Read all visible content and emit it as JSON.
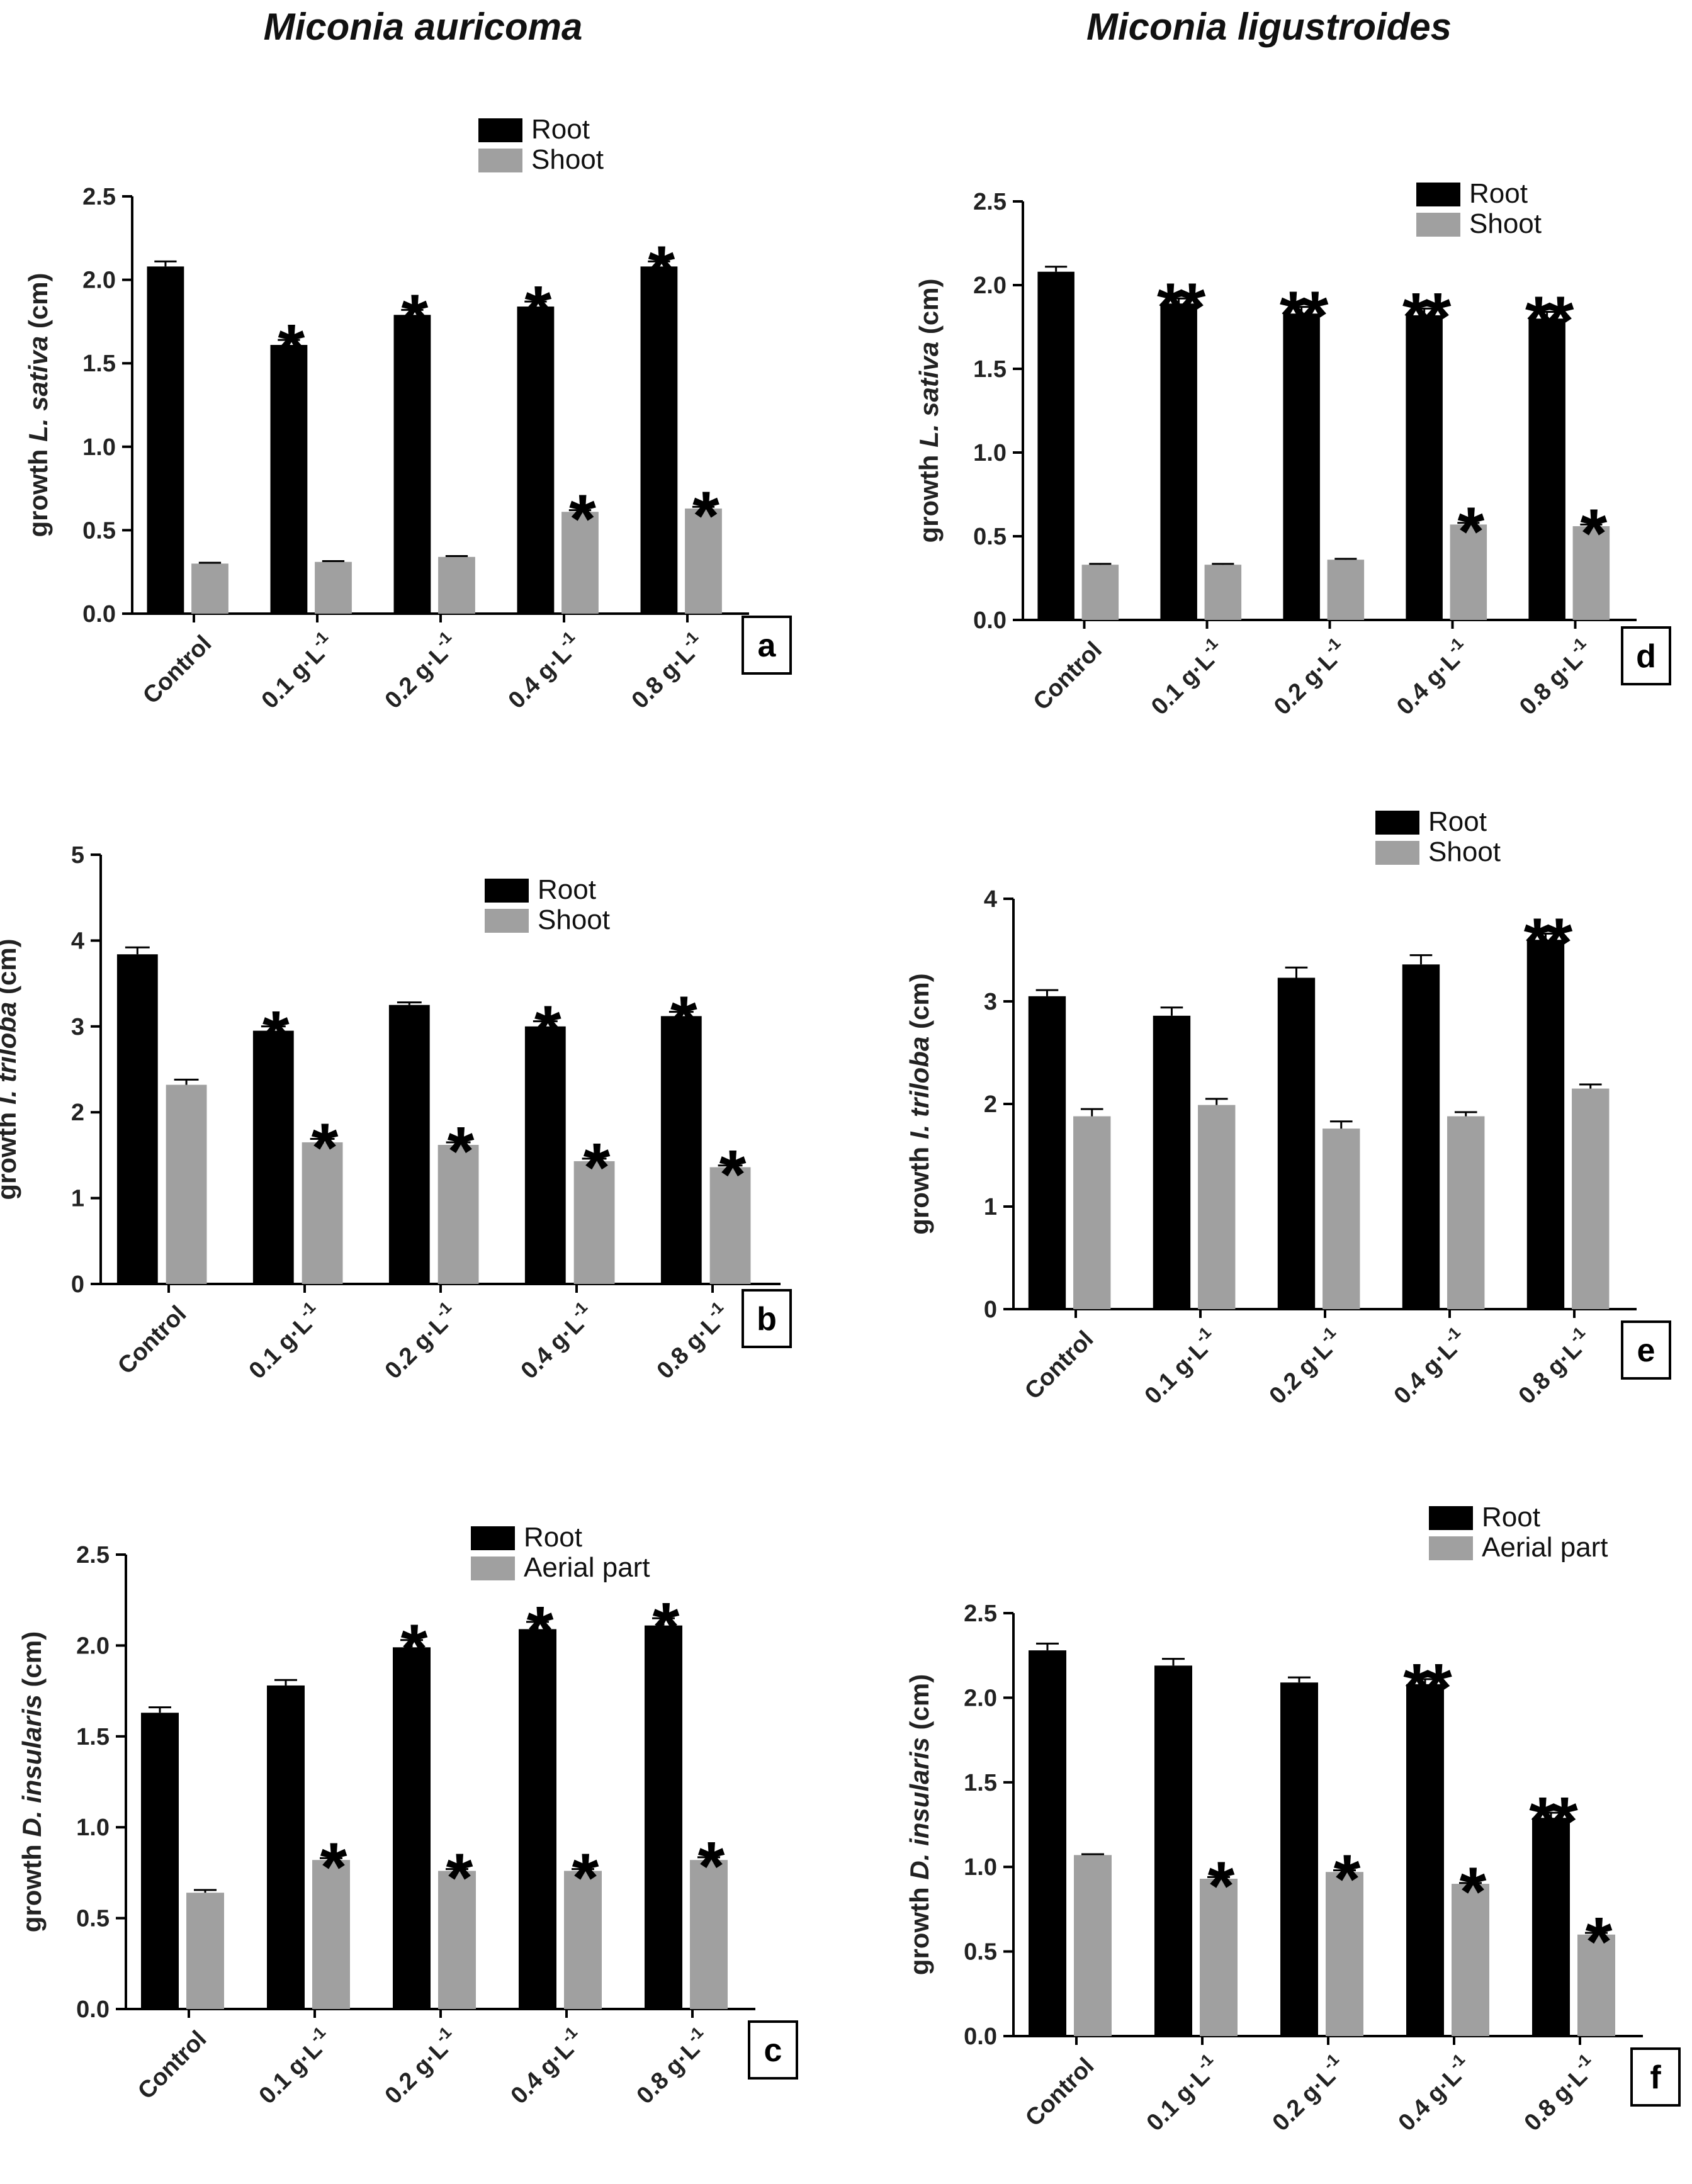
{
  "column_titles": {
    "left": "Miconia auricoma",
    "right": "Miconia ligustroides"
  },
  "colors": {
    "root": "#000000",
    "shoot": "#a0a0a0",
    "axis": "#000000"
  },
  "chart_data": [
    {
      "panel": "a",
      "type": "bar",
      "column": "Miconia auricoma",
      "categories": [
        "Control",
        "0.1 g·L-1",
        "0.2 g·L-1",
        "0.4 g·L-1",
        "0.8 g·L-1"
      ],
      "ylabel_prefix": "growth ",
      "ylabel_species": "L. sativa",
      "ylabel_suffix": " (cm)",
      "ylim": [
        0,
        2.5
      ],
      "yticks": [
        "0.0",
        "0.5",
        "1.0",
        "1.5",
        "2.0",
        "2.5"
      ],
      "series": [
        {
          "name": "Root",
          "values": [
            2.08,
            1.61,
            1.79,
            1.84,
            2.08
          ],
          "errors": [
            0.03,
            0.03,
            0.03,
            0.03,
            0.03
          ],
          "marks": [
            "",
            "*",
            "*",
            "*",
            "*"
          ]
        },
        {
          "name": "Shoot",
          "values": [
            0.3,
            0.31,
            0.34,
            0.61,
            0.63
          ],
          "errors": [
            0.005,
            0.005,
            0.005,
            0.01,
            0.01
          ],
          "marks": [
            "",
            "",
            "",
            "*",
            "*"
          ]
        }
      ],
      "legend": [
        "Root",
        "Shoot"
      ],
      "legend_position": "top-center"
    },
    {
      "panel": "b",
      "type": "bar",
      "column": "Miconia auricoma",
      "categories": [
        "Control",
        "0.1 g·L-1",
        "0.2 g·L-1",
        "0.4 g·L-1",
        "0.8 g·L-1"
      ],
      "ylabel_prefix": "growth ",
      "ylabel_species": "I. triloba",
      "ylabel_suffix": " (cm)",
      "ylim": [
        0,
        5
      ],
      "yticks": [
        "0",
        "1",
        "2",
        "3",
        "4",
        "5"
      ],
      "series": [
        {
          "name": "Root",
          "values": [
            3.84,
            2.95,
            3.25,
            3.0,
            3.12
          ],
          "errors": [
            0.08,
            0.05,
            0.03,
            0.06,
            0.05
          ],
          "marks": [
            "",
            "*",
            "",
            "*",
            "*"
          ]
        },
        {
          "name": "Shoot",
          "values": [
            2.32,
            1.65,
            1.62,
            1.43,
            1.36
          ],
          "errors": [
            0.06,
            0.04,
            0.03,
            0.03,
            0.02
          ],
          "marks": [
            "",
            "*",
            "*",
            "*",
            "*"
          ]
        }
      ],
      "legend": [
        "Root",
        "Shoot"
      ],
      "legend_position": "top-right"
    },
    {
      "panel": "c",
      "type": "bar",
      "column": "Miconia auricoma",
      "categories": [
        "Control",
        "0.1 g·L-1",
        "0.2 g·L-1",
        "0.4 g·L-1",
        "0.8 g·L-1"
      ],
      "ylabel_prefix": "growth ",
      "ylabel_species": "D. insularis",
      "ylabel_suffix": " (cm)",
      "ylim": [
        0,
        2.5
      ],
      "yticks": [
        "0.0",
        "0.5",
        "1.0",
        "1.5",
        "2.0",
        "2.5"
      ],
      "series": [
        {
          "name": "Root",
          "values": [
            1.63,
            1.78,
            1.99,
            2.09,
            2.11
          ],
          "errors": [
            0.03,
            0.03,
            0.04,
            0.04,
            0.04
          ],
          "marks": [
            "",
            "",
            "*",
            "*",
            "*"
          ]
        },
        {
          "name": "Aerial part",
          "values": [
            0.64,
            0.82,
            0.76,
            0.76,
            0.82
          ],
          "errors": [
            0.015,
            0.01,
            0.01,
            0.01,
            0.015
          ],
          "marks": [
            "",
            "*",
            "*",
            "*",
            "*"
          ]
        }
      ],
      "legend": [
        "Root",
        "Aerial part"
      ],
      "legend_position": "top-center"
    },
    {
      "panel": "d",
      "type": "bar",
      "column": "Miconia ligustroides",
      "categories": [
        "Control",
        "0.1 g·L-1",
        "0.2 g·L-1",
        "0.4 g·L-1",
        "0.8 g·L-1"
      ],
      "ylabel_prefix": "growth ",
      "ylabel_species": "L. sativa",
      "ylabel_suffix": " (cm)",
      "ylim": [
        0,
        2.5
      ],
      "yticks": [
        "0.0",
        "0.5",
        "1.0",
        "1.5",
        "2.0",
        "2.5"
      ],
      "series": [
        {
          "name": "Root",
          "values": [
            2.08,
            1.89,
            1.83,
            1.82,
            1.8
          ],
          "errors": [
            0.03,
            0.03,
            0.04,
            0.04,
            0.04
          ],
          "marks": [
            "",
            "**",
            "**",
            "**",
            "**"
          ]
        },
        {
          "name": "Shoot",
          "values": [
            0.33,
            0.33,
            0.36,
            0.57,
            0.56
          ],
          "errors": [
            0.005,
            0.005,
            0.005,
            0.01,
            0.01
          ],
          "marks": [
            "",
            "",
            "",
            "*",
            "*"
          ]
        }
      ],
      "legend": [
        "Root",
        "Shoot"
      ],
      "legend_position": "top-right"
    },
    {
      "panel": "e",
      "type": "bar",
      "column": "Miconia ligustroides",
      "categories": [
        "Control",
        "0.1 g·L-1",
        "0.2 g·L-1",
        "0.4 g·L-1",
        "0.8 g·L-1"
      ],
      "ylabel_prefix": "growth ",
      "ylabel_species": "I. triloba",
      "ylabel_suffix": " (cm)",
      "ylim": [
        0,
        4
      ],
      "yticks": [
        "0",
        "1",
        "2",
        "3",
        "4"
      ],
      "series": [
        {
          "name": "Root",
          "values": [
            3.05,
            2.86,
            3.23,
            3.36,
            3.6
          ],
          "errors": [
            0.06,
            0.08,
            0.1,
            0.09,
            0.06
          ],
          "marks": [
            "",
            "",
            "",
            "",
            "**"
          ]
        },
        {
          "name": "Shoot",
          "values": [
            1.88,
            1.99,
            1.76,
            1.88,
            2.15
          ],
          "errors": [
            0.07,
            0.06,
            0.07,
            0.04,
            0.04
          ],
          "marks": [
            "",
            "",
            "",
            "",
            ""
          ]
        }
      ],
      "legend": [
        "Root",
        "Shoot"
      ],
      "legend_position": "top-center"
    },
    {
      "panel": "f",
      "type": "bar",
      "column": "Miconia ligustroides",
      "categories": [
        "Control",
        "0.1 g·L-1",
        "0.2 g·L-1",
        "0.4 g·L-1",
        "0.8 g·L-1"
      ],
      "ylabel_prefix": "growth ",
      "ylabel_species": "D. insularis",
      "ylabel_suffix": " (cm)",
      "ylim": [
        0,
        2.5
      ],
      "yticks": [
        "0.0",
        "0.5",
        "1.0",
        "1.5",
        "2.0",
        "2.5"
      ],
      "series": [
        {
          "name": "Root",
          "values": [
            2.28,
            2.19,
            2.09,
            2.08,
            1.29
          ],
          "errors": [
            0.04,
            0.04,
            0.03,
            0.03,
            0.03
          ],
          "marks": [
            "",
            "",
            "",
            "**",
            "**"
          ]
        },
        {
          "name": "Aerial part",
          "values": [
            1.07,
            0.93,
            0.97,
            0.9,
            0.6
          ],
          "errors": [
            0.005,
            0.01,
            0.01,
            0.005,
            0.01
          ],
          "marks": [
            "",
            "*",
            "*",
            "*",
            "*"
          ]
        }
      ],
      "legend": [
        "Root",
        "Aerial part"
      ],
      "legend_position": "top-center"
    }
  ]
}
